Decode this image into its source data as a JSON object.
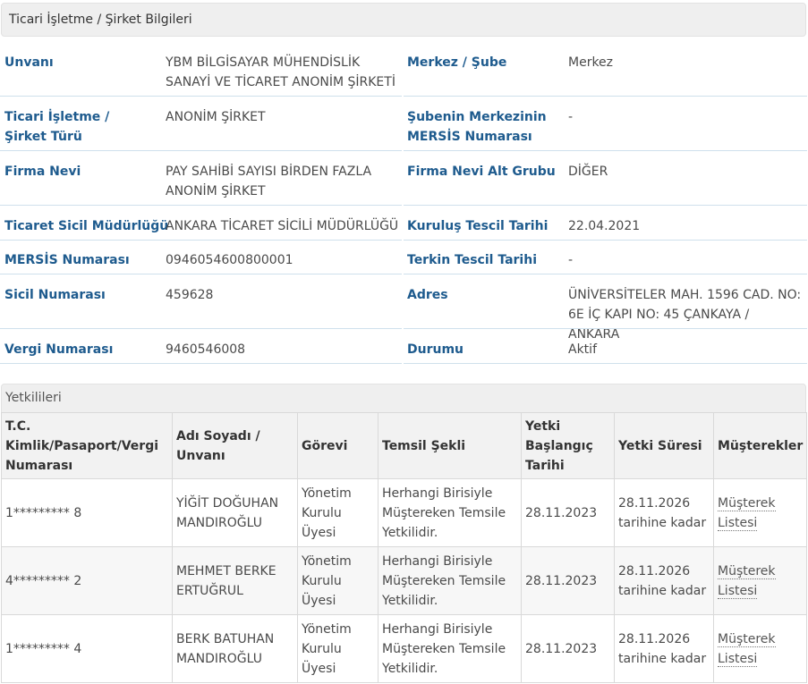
{
  "section_title": "Ticari İşletme / Şirket Bilgileri",
  "info": {
    "unvani_label": "Unvanı",
    "unvani_value": "YBM BİLGİSAYAR MÜHENDİSLİK SANAYİ VE TİCARET ANONİM ŞİRKETİ",
    "merkez_sube_label": "Merkez / Şube",
    "merkez_sube_value": "Merkez",
    "sirket_turu_label": "Ticari İşletme / Şirket Türü",
    "sirket_turu_value": "ANONİM ŞİRKET",
    "sube_mersis_label": "Şubenin Merkezinin MERSİS Numarası",
    "sube_mersis_value": "-",
    "firma_nevi_label": "Firma Nevi",
    "firma_nevi_value": "PAY SAHİBİ SAYISI BİRDEN FAZLA ANONİM ŞİRKET",
    "firma_nevi_alt_label": "Firma Nevi Alt Grubu",
    "firma_nevi_alt_value": "DİĞER",
    "sicil_mudurlugu_label": "Ticaret Sicil Müdürlüğü",
    "sicil_mudurlugu_value": "ANKARA TİCARET SİCİLİ MÜDÜRLÜĞÜ",
    "kurulus_label": "Kuruluş Tescil Tarihi",
    "kurulus_value": "22.04.2021",
    "mersis_label": "MERSİS Numarası",
    "mersis_value": "0946054600800001",
    "terkin_label": "Terkin Tescil Tarihi",
    "terkin_value": "-",
    "sicil_no_label": "Sicil Numarası",
    "sicil_no_value": "459628",
    "adres_label": "Adres",
    "adres_value": "ÜNİVERSİTELER MAH. 1596 CAD. NO: 6E İÇ KAPI NO: 45 ÇANKAYA / ANKARA",
    "vergi_label": "Vergi Numarası",
    "vergi_value": "9460546008",
    "durum_label": "Durumu",
    "durum_value": "Aktif"
  },
  "authorized": {
    "title": "Yetkilileri",
    "headers": [
      "T.C. Kimlik/Pasaport/Vergi Numarası",
      "Adı Soyadı / Unvanı",
      "Görevi",
      "Temsil Şekli",
      "Yetki Başlangıç Tarihi",
      "Yetki Süresi",
      "Müşterekler"
    ],
    "rows": [
      {
        "id": "1********* 8",
        "name": "YİĞİT DOĞUHAN MANDIROĞLU",
        "role": "Yönetim Kurulu Üyesi",
        "temsil": "Herhangi Birisiyle Müştereken Temsile Yetkilidir.",
        "start": "28.11.2023",
        "duration": "28.11.2026 tarihine kadar",
        "link": "Müşterek Listesi"
      },
      {
        "id": "4********* 2",
        "name": "MEHMET BERKE ERTUĞRUL",
        "role": "Yönetim Kurulu Üyesi",
        "temsil": "Herhangi Birisiyle Müştereken Temsile Yetkilidir.",
        "start": "28.11.2023",
        "duration": "28.11.2026 tarihine kadar",
        "link": "Müşterek Listesi"
      },
      {
        "id": "1********* 4",
        "name": "BERK BATUHAN MANDIROĞLU",
        "role": "Yönetim Kurulu Üyesi",
        "temsil": "Herhangi Birisiyle Müştereken Temsile Yetkilidir.",
        "start": "28.11.2023",
        "duration": "28.11.2026 tarihine kadar",
        "link": "Müşterek Listesi"
      }
    ]
  }
}
